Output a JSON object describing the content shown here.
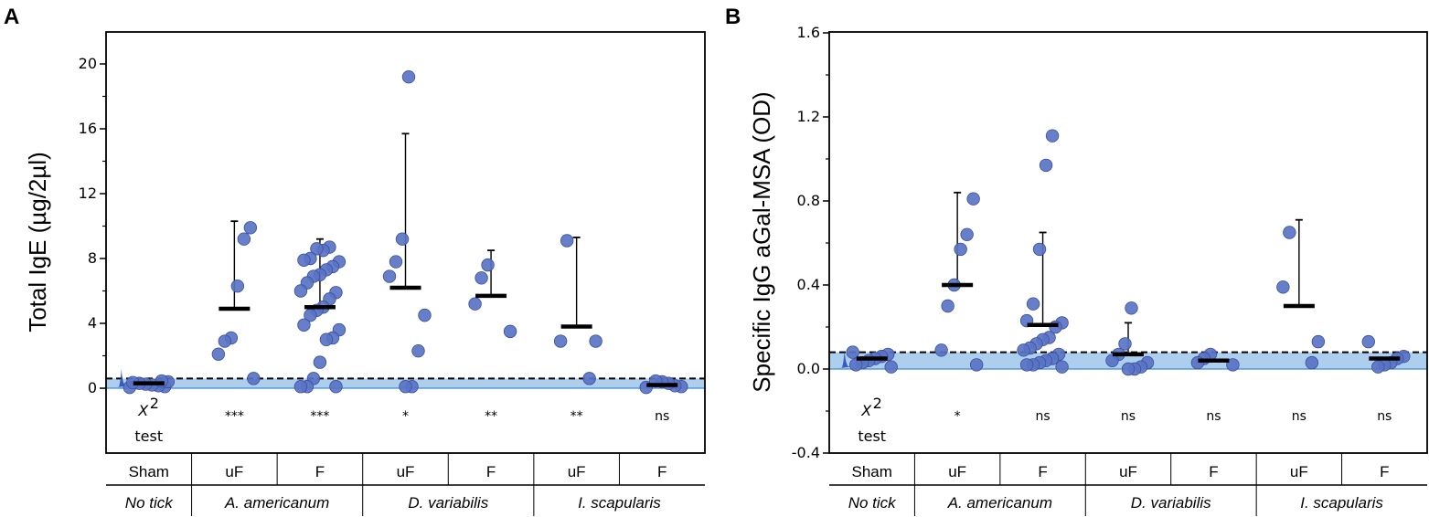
{
  "chart_data": [
    {
      "panel": "A",
      "type": "scatter",
      "ylabel": "Total IgE (µg/2µl)",
      "ylim": [
        -4,
        22
      ],
      "yticks": [
        0,
        4,
        8,
        12,
        16,
        20
      ],
      "ytick_labels": [
        "0",
        "4",
        "8",
        "12",
        "16",
        "20"
      ],
      "cutoff": 0.6,
      "chi_label": "X",
      "chi_sup": "2",
      "chi_word": "test",
      "groups": [
        {
          "label": "Sham",
          "species": "No tick",
          "mean": 0.3,
          "sd": null,
          "significance": "",
          "points": [
            0.05,
            0.1,
            0.15,
            0.2,
            0.25,
            0.3,
            0.35,
            0.4,
            0.45
          ]
        },
        {
          "label": "uF",
          "species": "A. americanum",
          "mean": 4.9,
          "sd": 10.3,
          "significance": "***",
          "points": [
            9.9,
            9.2,
            6.3,
            3.1,
            2.9,
            2.1,
            0.6
          ]
        },
        {
          "label": "F",
          "species": "A. americanum",
          "mean": 5.0,
          "sd": 9.2,
          "significance": "***",
          "points": [
            8.7,
            8.5,
            8.6,
            8.0,
            7.9,
            7.8,
            7.5,
            7.3,
            7.0,
            6.9,
            6.5,
            6.0,
            5.9,
            5.5,
            5.0,
            4.8,
            4.5,
            3.9,
            3.6,
            3.1,
            3.0,
            1.6,
            0.6,
            0.1,
            0.1,
            0.1
          ]
        },
        {
          "label": "uF",
          "species": "D. variabilis",
          "mean": 6.2,
          "sd": 15.7,
          "significance": "*",
          "points": [
            19.2,
            9.2,
            7.8,
            6.9,
            4.5,
            2.3,
            0.1,
            0.1
          ]
        },
        {
          "label": "F",
          "species": "D. variabilis",
          "mean": 5.7,
          "sd": 8.5,
          "significance": "**",
          "points": [
            7.6,
            6.8,
            5.2,
            3.5
          ]
        },
        {
          "label": "uF",
          "species": "I. scapularis",
          "mean": 3.8,
          "sd": 9.3,
          "significance": "**",
          "points": [
            9.1,
            2.9,
            2.9,
            0.6
          ]
        },
        {
          "label": "F",
          "species": "I. scapularis",
          "mean": 0.2,
          "sd": null,
          "significance": "ns",
          "points": [
            0.05,
            0.1,
            0.15,
            0.3,
            0.4,
            0.45
          ]
        }
      ]
    },
    {
      "panel": "B",
      "type": "scatter",
      "ylabel": "Specific IgG aGal-MSA (OD)",
      "ylim": [
        -0.4,
        1.6
      ],
      "yticks": [
        -0.4,
        0.0,
        0.4,
        0.8,
        1.2,
        1.6
      ],
      "ytick_labels": [
        "-0.4",
        "0.0",
        "0.4",
        "0.8",
        "1.2",
        "1.6"
      ],
      "cutoff": 0.08,
      "chi_label": "X",
      "chi_sup": "2",
      "chi_word": "test",
      "groups": [
        {
          "label": "Sham",
          "species": "No tick",
          "mean": 0.05,
          "sd": null,
          "significance": "",
          "points": [
            0.08,
            0.07,
            0.06,
            0.05,
            0.04,
            0.03,
            0.02,
            0.01
          ]
        },
        {
          "label": "uF",
          "species": "A. americanum",
          "mean": 0.4,
          "sd": 0.84,
          "significance": "*",
          "points": [
            0.81,
            0.64,
            0.57,
            0.4,
            0.3,
            0.09,
            0.02
          ]
        },
        {
          "label": "F",
          "species": "A. americanum",
          "mean": 0.21,
          "sd": 0.65,
          "significance": "ns",
          "points": [
            1.11,
            0.97,
            0.57,
            0.31,
            0.23,
            0.22,
            0.2,
            0.15,
            0.14,
            0.12,
            0.1,
            0.09,
            0.07,
            0.05,
            0.04,
            0.03,
            0.02,
            0.02,
            0.01
          ]
        },
        {
          "label": "uF",
          "species": "D. variabilis",
          "mean": 0.07,
          "sd": 0.22,
          "significance": "ns",
          "points": [
            0.29,
            0.12,
            0.07,
            0.04,
            0.03,
            0.01,
            0.0,
            0.0
          ]
        },
        {
          "label": "F",
          "species": "D. variabilis",
          "mean": 0.04,
          "sd": null,
          "significance": "ns",
          "points": [
            0.07,
            0.05,
            0.03,
            0.02
          ]
        },
        {
          "label": "uF",
          "species": "I. scapularis",
          "mean": 0.3,
          "sd": 0.71,
          "significance": "ns",
          "points": [
            0.65,
            0.39,
            0.13,
            0.03
          ]
        },
        {
          "label": "F",
          "species": "I. scapularis",
          "mean": 0.05,
          "sd": null,
          "significance": "ns",
          "points": [
            0.13,
            0.06,
            0.05,
            0.03,
            0.02,
            0.01
          ]
        }
      ]
    }
  ],
  "colors": {
    "point_fill": "#5a73c4",
    "point_stroke": "#3a50a0",
    "band": "#9fc5ea",
    "band_line": "#3b8ad6",
    "sham_spike": "#2b4fb8"
  }
}
